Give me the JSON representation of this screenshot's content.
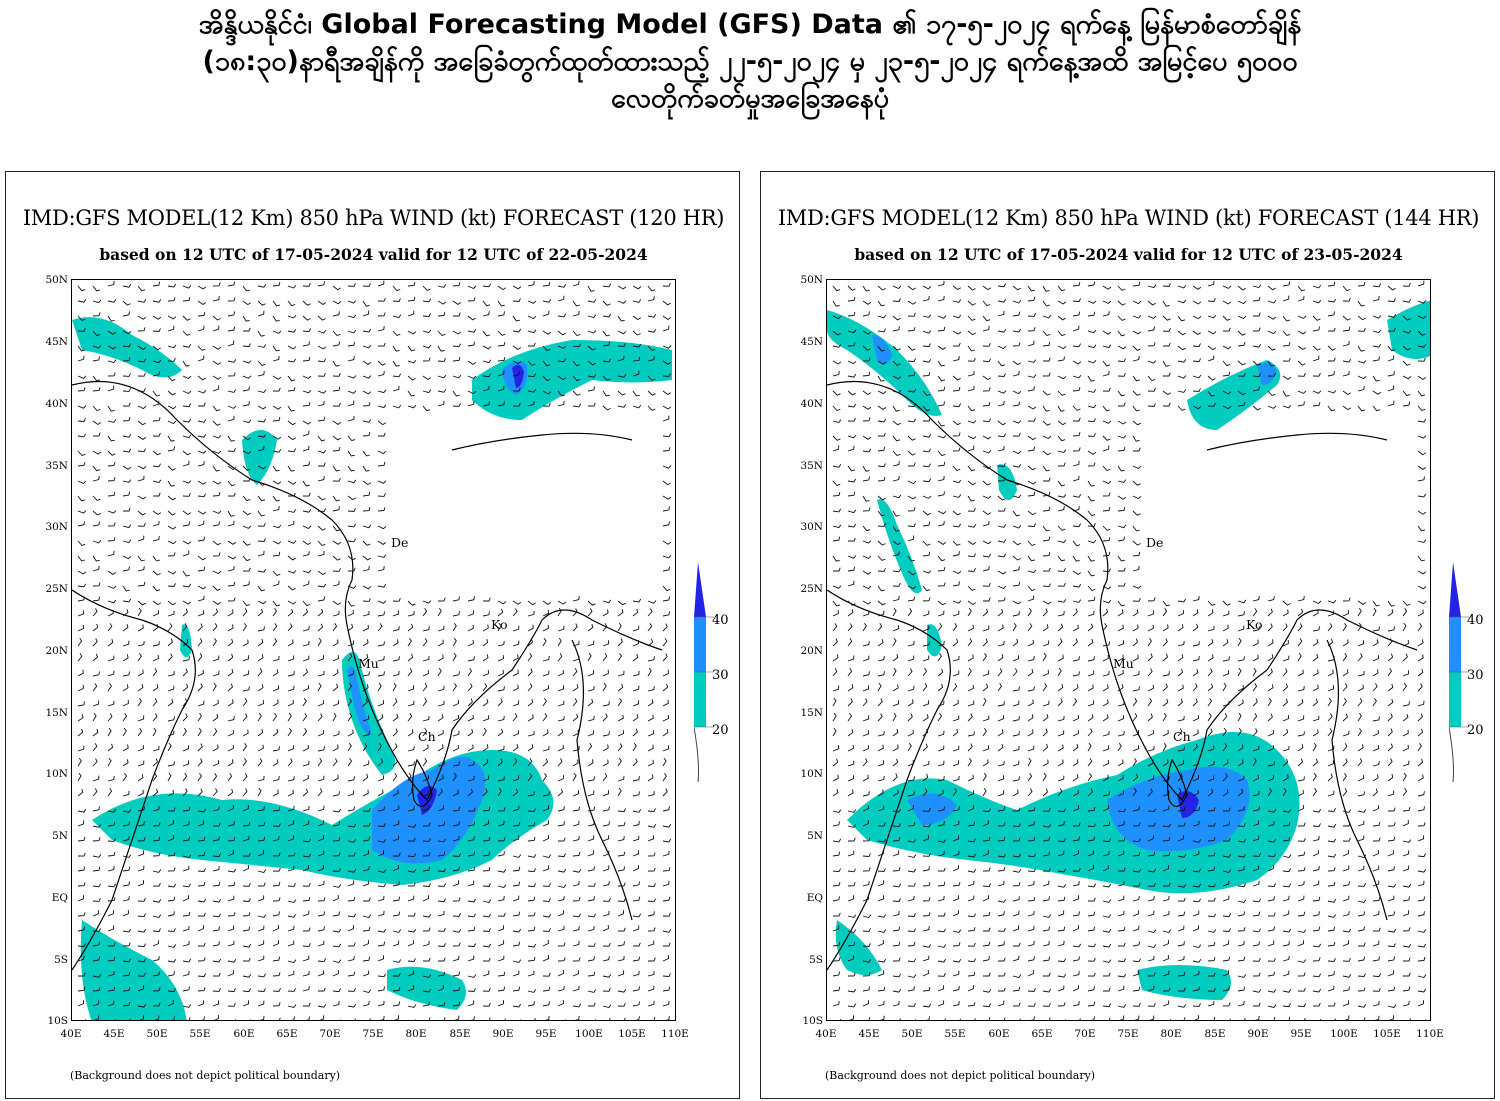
{
  "header": {
    "line1": "အိန္ဒိယနိုင်ငံ၊ Global Forecasting Model (GFS) Data ၏ ၁၇-၅-၂၀၂၄ ရက်နေ့ မြန်မာစံတော်ချိန်",
    "line2": "(၁၈:၃၀)နာရီအချိန်ကို အခြေခံတွက်ထုတ်ထားသည့် ၂၂-၅-၂၀၂၄ မှ ၂၃-၅-၂၀၂၄ ရက်နေ့အထိ အမြင့်ပေ ၅၀၀၀",
    "line3": "လေတိုက်ခတ်မှုအခြေအနေပုံ"
  },
  "panels": [
    {
      "title": "IMD:GFS MODEL(12 Km) 850 hPa WIND (kt) FORECAST (120 HR)",
      "subtitle": "based on 12 UTC of 17-05-2024 valid for 12 UTC of 22-05-2024",
      "footnote": "(Background does not depict political boundary)"
    },
    {
      "title": "IMD:GFS MODEL(12 Km) 850 hPa WIND (kt) FORECAST (144 HR)",
      "subtitle": "based on 12 UTC of 17-05-2024 valid for 12 UTC of 23-05-2024",
      "footnote": "(Background does not depict political boundary)"
    }
  ],
  "axes": {
    "lat_labels": [
      "50N",
      "45N",
      "40N",
      "35N",
      "30N",
      "25N",
      "20N",
      "15N",
      "10N",
      "5N",
      "EQ",
      "5S",
      "10S"
    ],
    "lon_labels": [
      "40E",
      "45E",
      "50E",
      "55E",
      "60E",
      "65E",
      "70E",
      "75E",
      "80E",
      "85E",
      "90E",
      "95E",
      "100E",
      "105E",
      "110E"
    ]
  },
  "cities": {
    "delhi": "De",
    "mumbai": "Mu",
    "chennai": "Ch",
    "kolkata": "Ko"
  },
  "colorbar": {
    "labels": [
      "40",
      "30",
      "20"
    ],
    "colors": {
      "above_40": "#2323e6",
      "c30_40": "#1e90ff",
      "c20_30": "#00cdc0"
    }
  },
  "chart_data": {
    "type": "wind_map",
    "variable": "850 hPa WIND (kt)",
    "lat_range": [
      "10S",
      "50N"
    ],
    "lon_range": [
      "40E",
      "110E"
    ],
    "color_levels_kt": [
      20,
      30,
      40
    ]
  }
}
